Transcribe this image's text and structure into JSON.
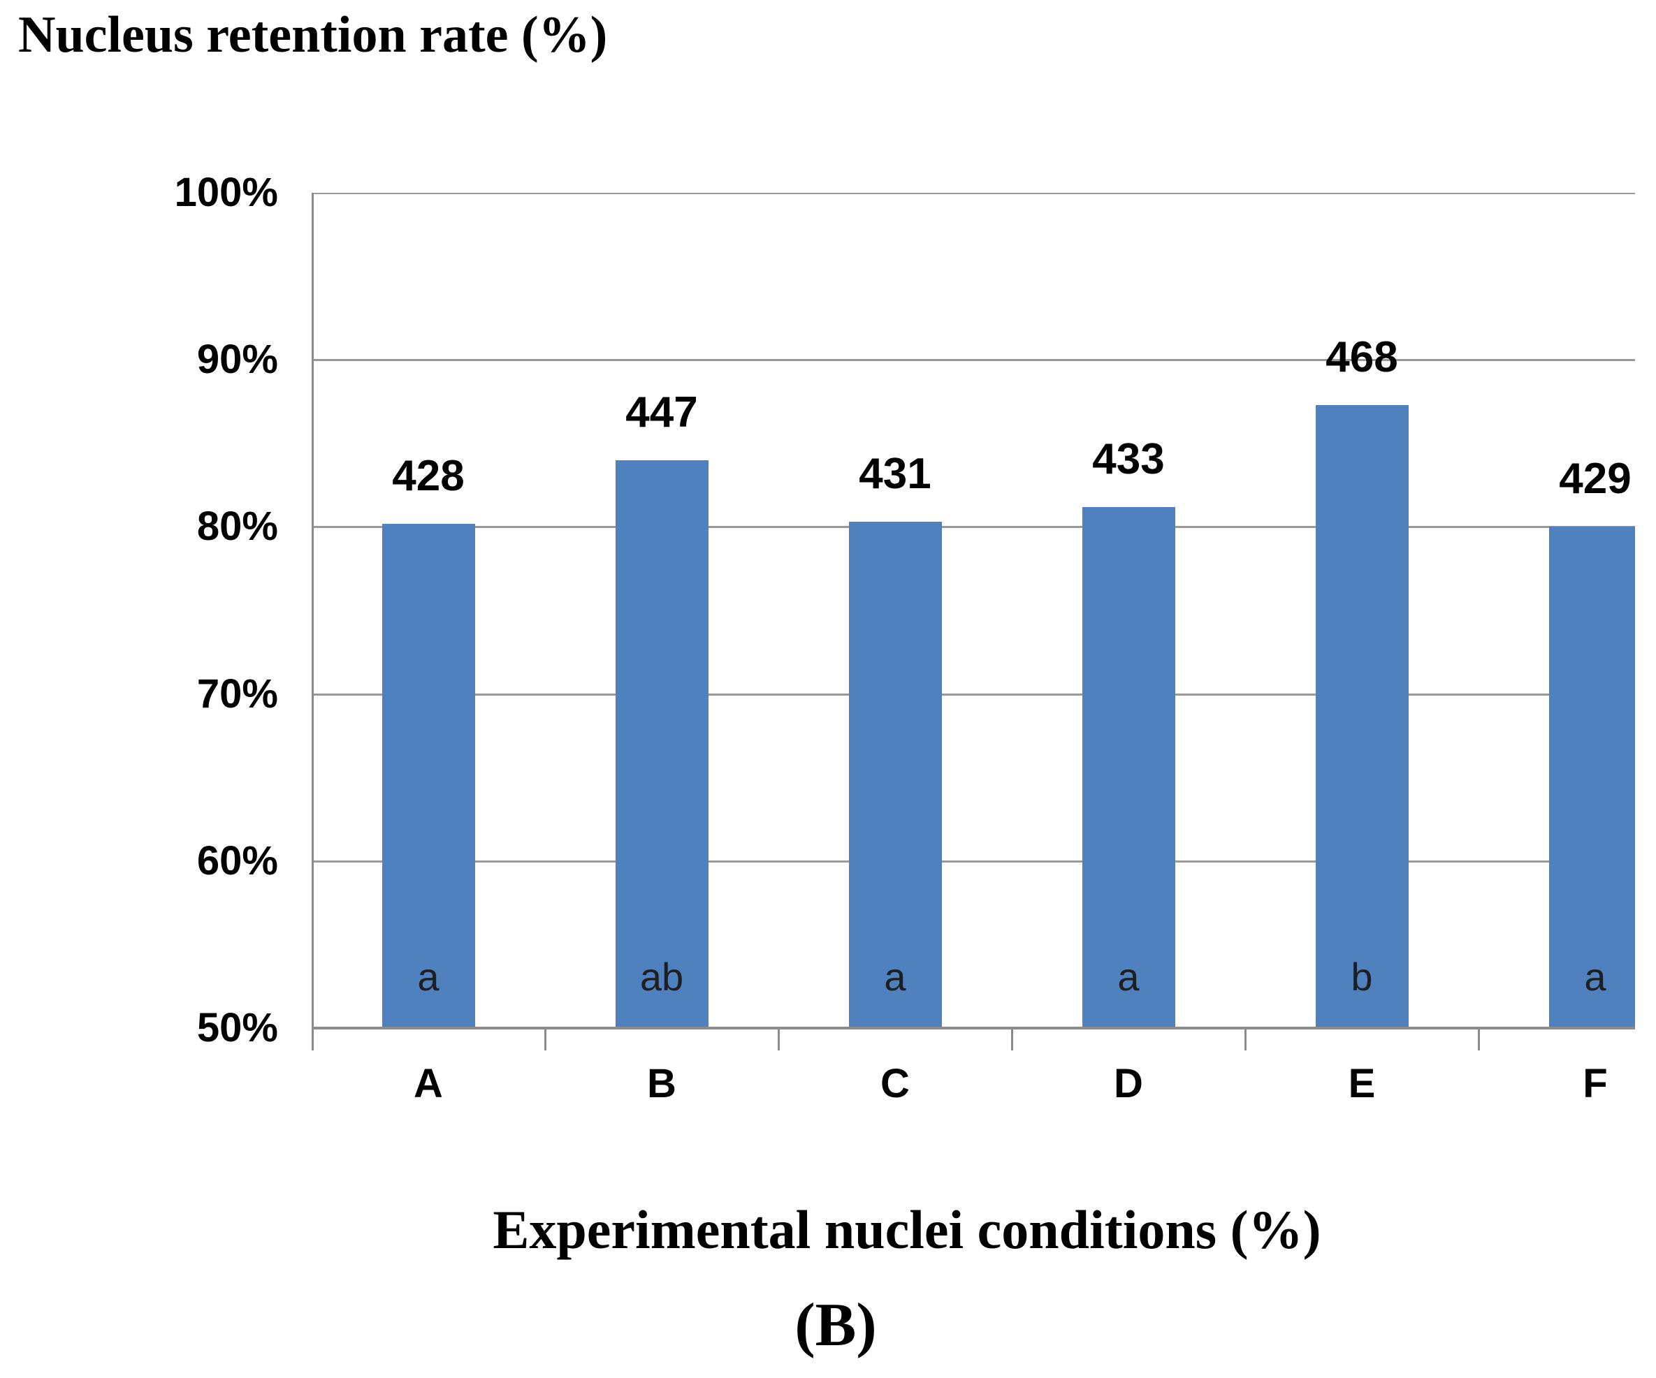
{
  "figure": {
    "title": "Nucleus retention rate (%)",
    "x_axis_title": "Experimental nuclei conditions (%)",
    "caption": "(B)"
  },
  "chart_data": {
    "type": "bar",
    "title": "Nucleus retention rate (%)",
    "xlabel": "Experimental nuclei conditions (%)",
    "ylabel": "",
    "caption": "(B)",
    "categories": [
      "A",
      "B",
      "C",
      "D",
      "E",
      "F"
    ],
    "series": [
      {
        "name": "Nucleus retention rate",
        "values_percent": [
          80.2,
          84.0,
          80.3,
          81.2,
          87.3,
          80.0
        ]
      }
    ],
    "bar_count_labels": [
      "428",
      "447",
      "431",
      "433",
      "468",
      "429"
    ],
    "significance_letters": [
      "a",
      "ab",
      "a",
      "a",
      "b",
      "a"
    ],
    "ylim": [
      50,
      100
    ],
    "yticks_percent": [
      50,
      60,
      70,
      80,
      90,
      100
    ],
    "ytick_labels": [
      "50%",
      "60%",
      "70%",
      "80%",
      "90%",
      "100%"
    ],
    "grid": true,
    "legend": false,
    "legend_position": "none",
    "bar_color": "#4E81BD",
    "grid_color": "#9A9A9A",
    "axis_color": "#8C8C8C",
    "text_color": "#000000"
  }
}
